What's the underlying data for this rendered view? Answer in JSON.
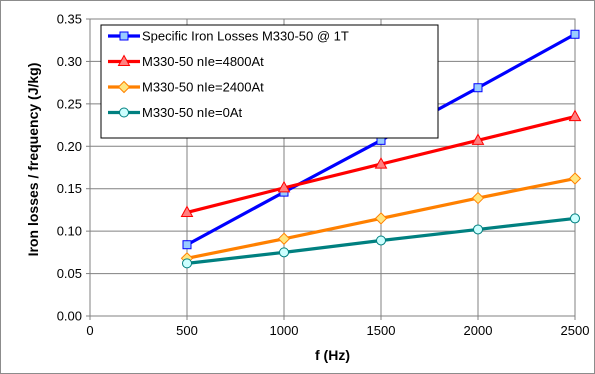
{
  "chart_data": {
    "type": "line",
    "xlabel": "f (Hz)",
    "ylabel": "Iron losses / frequency (J/kg)",
    "xlim": [
      0,
      2500
    ],
    "ylim": [
      0,
      0.35
    ],
    "x_ticks": [
      "0",
      "500",
      "1000",
      "1500",
      "2000",
      "2500"
    ],
    "y_ticks": [
      "0.00",
      "0.05",
      "0.10",
      "0.15",
      "0.20",
      "0.25",
      "0.30",
      "0.35"
    ],
    "grid": true,
    "legend_position": "top-left",
    "x": [
      500,
      1000,
      1500,
      2000,
      2500
    ],
    "series": [
      {
        "name": "Specific Iron Losses M330-50 @ 1T",
        "color": "#0000ff",
        "marker_fill": "#99ccff",
        "marker": "square",
        "values": [
          0.084,
          0.146,
          0.207,
          0.269,
          0.332
        ]
      },
      {
        "name": "M330-50 nIe=4800At",
        "color": "#ff0000",
        "marker_fill": "#ff8080",
        "marker": "triangle",
        "values": [
          0.122,
          0.151,
          0.179,
          0.207,
          0.235
        ]
      },
      {
        "name": "M330-50 nIe=2400At",
        "color": "#ff8000",
        "marker_fill": "#ffe680",
        "marker": "diamond",
        "values": [
          0.068,
          0.091,
          0.115,
          0.139,
          0.162
        ]
      },
      {
        "name": "M330-50 nIe=0At",
        "color": "#008080",
        "marker_fill": "#ccffff",
        "marker": "circle",
        "values": [
          0.062,
          0.075,
          0.089,
          0.102,
          0.115
        ]
      }
    ]
  }
}
